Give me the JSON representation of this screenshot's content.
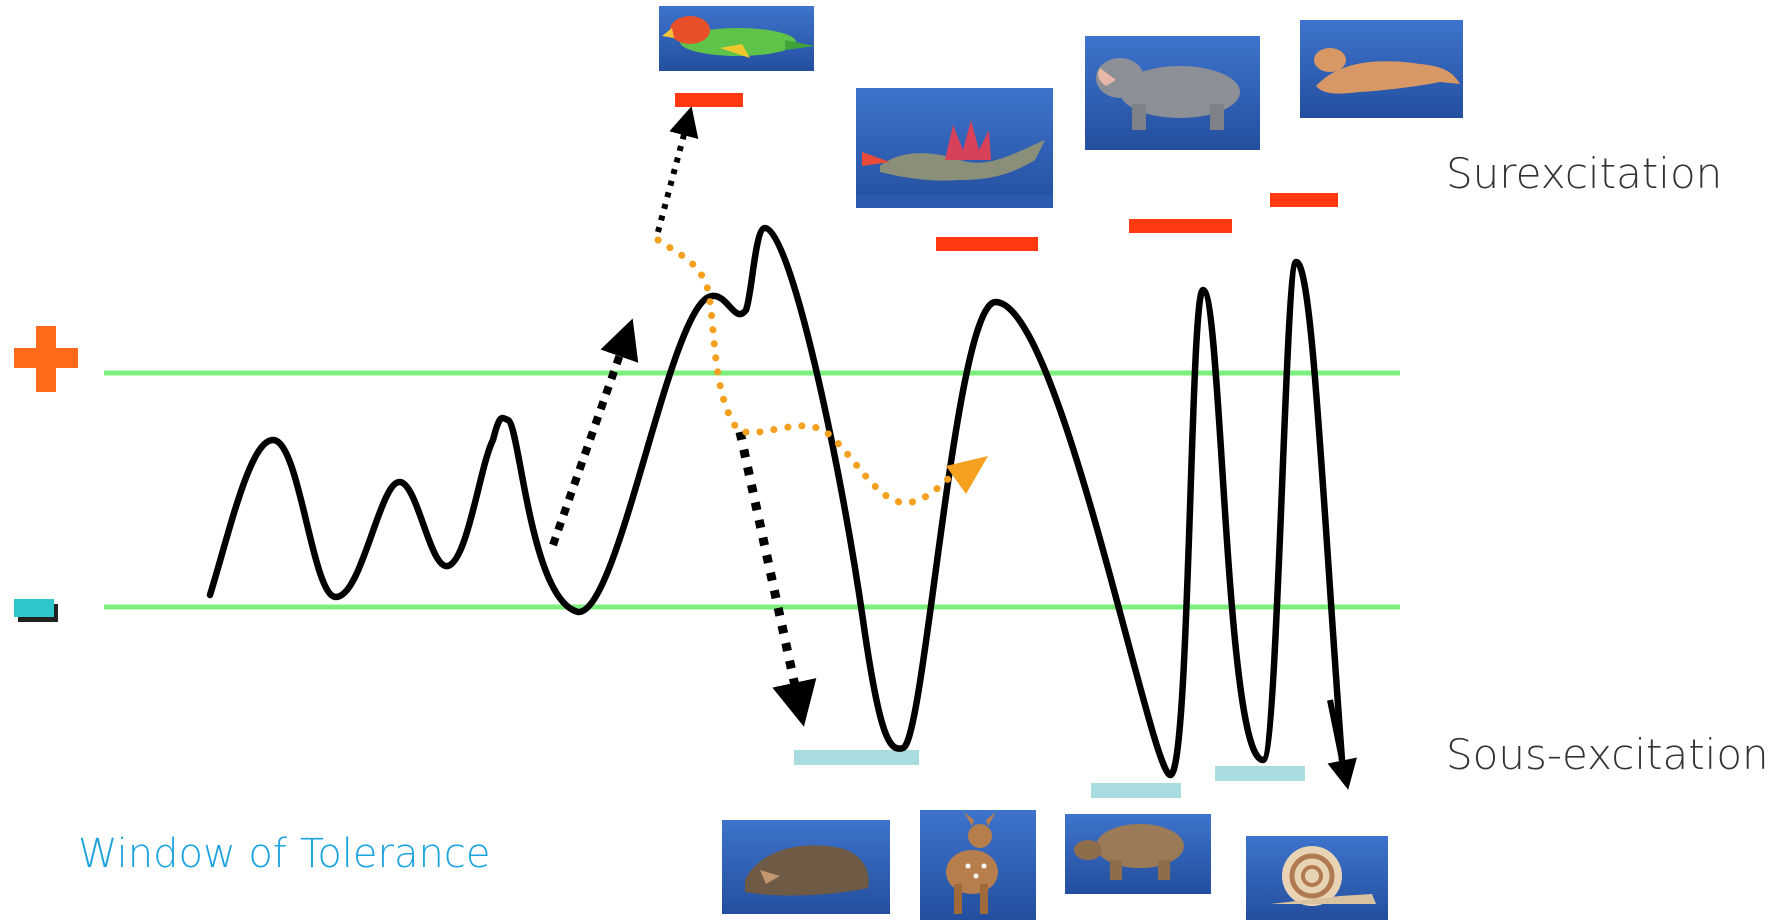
{
  "labels": {
    "overarousal": "Surexcitation",
    "underarousal": "Sous-excitation",
    "window": "Window of Tolerance"
  },
  "symbols": {
    "plus": "+",
    "minus": "-"
  },
  "pictures": {
    "top": [
      "parrot",
      "dragon",
      "hippo",
      "tiger"
    ],
    "bottom": [
      "mole",
      "fawn",
      "turtle",
      "snail"
    ]
  },
  "colors": {
    "window_line": "#7CF07C",
    "plus": "#FF6A1A",
    "minus": "#2EC6C9",
    "hyper_bar": "#FF3A10",
    "hypo_bar": "#A8DCDF",
    "curve": "#000000",
    "dotted_orange": "#F5A01E",
    "window_label": "#1BA3E0",
    "photo_bg": "#2F62B8"
  }
}
